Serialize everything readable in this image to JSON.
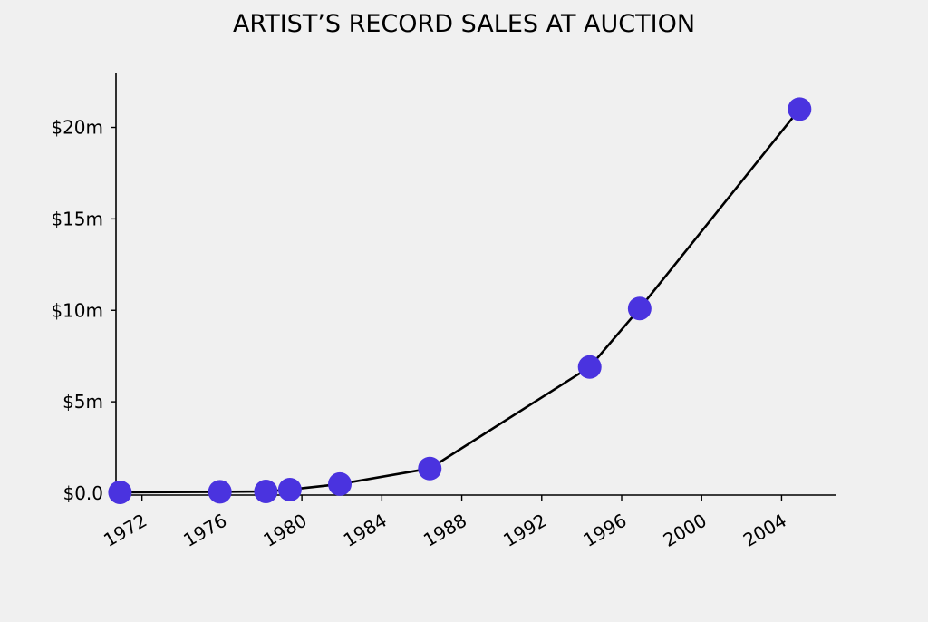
{
  "chart_data": {
    "type": "line",
    "title": "ARTIST’S RECORD SALES AT AUCTION",
    "xlabel": "",
    "ylabel": "",
    "x_ticks": [
      "1972",
      "1976",
      "1980",
      "1984",
      "1988",
      "1992",
      "1996",
      "2000",
      "2004"
    ],
    "y_ticks": [
      "$0.0",
      "$5m",
      "$10m",
      "$15m",
      "$20m"
    ],
    "xlim": [
      1970.7,
      2006.7
    ],
    "ylim": [
      -0.1,
      23.0
    ],
    "series": [
      {
        "x": [
          1970.9,
          1975.9,
          1978.2,
          1979.4,
          1981.9,
          1986.4,
          1994.4,
          1996.9,
          2004.9
        ],
        "y": [
          0.05,
          0.08,
          0.1,
          0.2,
          0.5,
          1.35,
          6.9,
          10.1,
          21.0
        ]
      }
    ],
    "colors": {
      "line": "#000000",
      "marker": "#4a33df",
      "background": "#f0f0f0"
    },
    "grid": false,
    "legend": "none"
  }
}
